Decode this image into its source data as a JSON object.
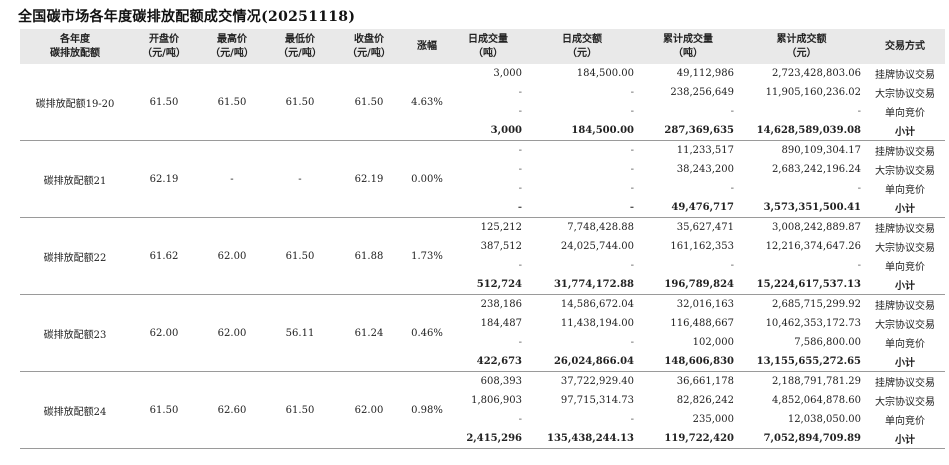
{
  "title": "全国碳市场各年度碳排放配额成交情况(20251118)",
  "headers": [
    [
      "各年度",
      "碳排放配额"
    ],
    [
      "开盘价",
      "（元/吨）"
    ],
    [
      "最高价",
      "（元/吨）"
    ],
    [
      "最低价",
      "（元/吨）"
    ],
    [
      "收盘价",
      "（元/吨）"
    ],
    [
      "涨幅"
    ],
    [
      "日成交量",
      "（吨）"
    ],
    [
      "日成交额",
      "（元）"
    ],
    [
      "累计成交量",
      "（吨）"
    ],
    [
      "累计成交额",
      "（元）"
    ],
    [
      "交易方式"
    ]
  ],
  "groups": [
    {
      "name": "碳排放配额19-20",
      "open": "61.50",
      "high": "61.50",
      "low": "61.50",
      "close": "61.50",
      "change": "4.63%",
      "rows": [
        {
          "vol": "3,000",
          "amt": "184,500.00",
          "cvol": "49,112,986",
          "camt": "2,723,428,803.06",
          "method": "挂牌协议交易"
        },
        {
          "vol": "-",
          "amt": "-",
          "cvol": "238,256,649",
          "camt": "11,905,160,236.02",
          "method": "大宗协议交易"
        },
        {
          "vol": "-",
          "amt": "-",
          "cvol": "-",
          "camt": "-",
          "method": "单向竞价"
        },
        {
          "vol": "3,000",
          "amt": "184,500.00",
          "cvol": "287,369,635",
          "camt": "14,628,589,039.08",
          "method": "小计"
        }
      ]
    },
    {
      "name": "碳排放配额21",
      "open": "62.19",
      "high": "-",
      "low": "-",
      "close": "62.19",
      "change": "0.00%",
      "rows": [
        {
          "vol": "-",
          "amt": "-",
          "cvol": "11,233,517",
          "camt": "890,109,304.17",
          "method": "挂牌协议交易"
        },
        {
          "vol": "-",
          "amt": "-",
          "cvol": "38,243,200",
          "camt": "2,683,242,196.24",
          "method": "大宗协议交易"
        },
        {
          "vol": "-",
          "amt": "-",
          "cvol": "-",
          "camt": "-",
          "method": "单向竞价"
        },
        {
          "vol": "-",
          "amt": "-",
          "cvol": "49,476,717",
          "camt": "3,573,351,500.41",
          "method": "小计"
        }
      ]
    },
    {
      "name": "碳排放配额22",
      "open": "61.62",
      "high": "62.00",
      "low": "61.50",
      "close": "61.88",
      "change": "1.73%",
      "rows": [
        {
          "vol": "125,212",
          "amt": "7,748,428.88",
          "cvol": "35,627,471",
          "camt": "3,008,242,889.87",
          "method": "挂牌协议交易"
        },
        {
          "vol": "387,512",
          "amt": "24,025,744.00",
          "cvol": "161,162,353",
          "camt": "12,216,374,647.26",
          "method": "大宗协议交易"
        },
        {
          "vol": "-",
          "amt": "-",
          "cvol": "-",
          "camt": "-",
          "method": "单向竞价"
        },
        {
          "vol": "512,724",
          "amt": "31,774,172.88",
          "cvol": "196,789,824",
          "camt": "15,224,617,537.13",
          "method": "小计"
        }
      ]
    },
    {
      "name": "碳排放配额23",
      "open": "62.00",
      "high": "62.00",
      "low": "56.11",
      "close": "61.24",
      "change": "0.46%",
      "rows": [
        {
          "vol": "238,186",
          "amt": "14,586,672.04",
          "cvol": "32,016,163",
          "camt": "2,685,715,299.92",
          "method": "挂牌协议交易"
        },
        {
          "vol": "184,487",
          "amt": "11,438,194.00",
          "cvol": "116,488,667",
          "camt": "10,462,353,172.73",
          "method": "大宗协议交易"
        },
        {
          "vol": "-",
          "amt": "-",
          "cvol": "102,000",
          "camt": "7,586,800.00",
          "method": "单向竞价"
        },
        {
          "vol": "422,673",
          "amt": "26,024,866.04",
          "cvol": "148,606,830",
          "camt": "13,155,655,272.65",
          "method": "小计"
        }
      ]
    },
    {
      "name": "碳排放配额24",
      "open": "61.50",
      "high": "62.60",
      "low": "61.50",
      "close": "62.00",
      "change": "0.98%",
      "rows": [
        {
          "vol": "608,393",
          "amt": "37,722,929.40",
          "cvol": "36,661,178",
          "camt": "2,188,791,781.29",
          "method": "挂牌协议交易"
        },
        {
          "vol": "1,806,903",
          "amt": "97,715,314.73",
          "cvol": "82,826,242",
          "camt": "4,852,064,878.60",
          "method": "大宗协议交易"
        },
        {
          "vol": "-",
          "amt": "-",
          "cvol": "235,000",
          "camt": "12,038,050.00",
          "method": "单向竞价"
        },
        {
          "vol": "2,415,296",
          "amt": "135,438,244.13",
          "cvol": "119,722,420",
          "camt": "7,052,894,709.89",
          "method": "小计"
        }
      ]
    }
  ]
}
